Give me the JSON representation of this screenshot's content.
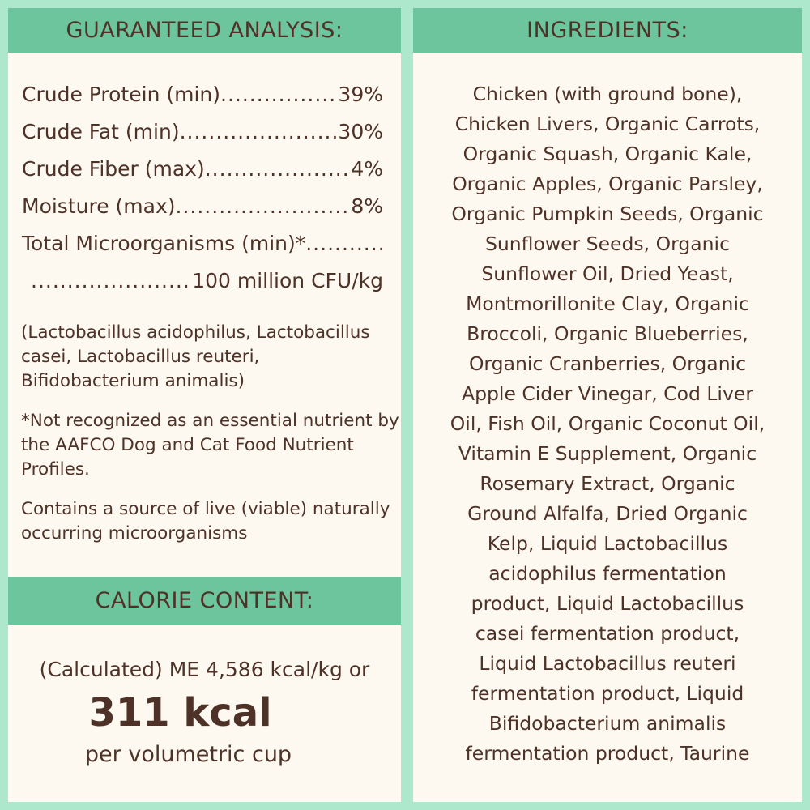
{
  "analysis": {
    "title": "GUARANTEED ANALYSIS:",
    "rows": [
      {
        "label": "Crude Protein (min)",
        "value": "39%"
      },
      {
        "label": "Crude Fat (min)",
        "value": "30%"
      },
      {
        "label": "Crude Fiber (max)",
        "value": "4%"
      },
      {
        "label": "Moisture (max)",
        "value": "8%"
      },
      {
        "label": "Total Microorganisms (min)*",
        "value": ""
      },
      {
        "label": "",
        "value": "100 million CFU/kg"
      }
    ],
    "strains": "(Lactobacillus acidophilus, Lactobacillus casei, Lactobacillus reuteri, Bifidobacterium animalis)",
    "footnote": "*Not recognized as an essential nutrient by the AAFCO Dog and Cat Food Nutrient Profiles.",
    "live_note": "Contains a source of live (viable) naturally occurring microorganisms"
  },
  "calorie": {
    "title": "CALORIE CONTENT:",
    "line1": "(Calculated) ME 4,586 kcal/kg or",
    "big": "311 kcal",
    "line3": "per volumetric cup"
  },
  "ingredients": {
    "title": "INGREDIENTS:",
    "lines": [
      "Chicken (with ground bone),",
      "Chicken Livers, Organic Carrots,",
      "Organic Squash, Organic Kale,",
      "Organic Apples, Organic Parsley,",
      "Organic Pumpkin Seeds, Organic",
      "Sunflower Seeds, Organic",
      "Sunflower Oil, Dried Yeast,",
      "Montmorillonite Clay, Organic",
      "Broccoli, Organic Blueberries,",
      "Organic Cranberries, Organic",
      "Apple Cider Vinegar, Cod Liver",
      "Oil, Fish Oil, Organic Coconut Oil,",
      "Vitamin E Supplement, Organic",
      "Rosemary Extract, Organic",
      "Ground Alfalfa, Dried Organic",
      "Kelp, Liquid Lactobacillus",
      "acidophilus fermentation",
      "product, Liquid Lactobacillus",
      "casei fermentation product,",
      "Liquid Lactobacillus reuteri",
      "fermentation product, Liquid",
      "Bifidobacterium animalis",
      "fermentation product, Taurine"
    ]
  },
  "colors": {
    "background": "#aee8cc",
    "header": "#6cc59c",
    "panel": "#fdf9f0",
    "text": "#4e3228"
  }
}
